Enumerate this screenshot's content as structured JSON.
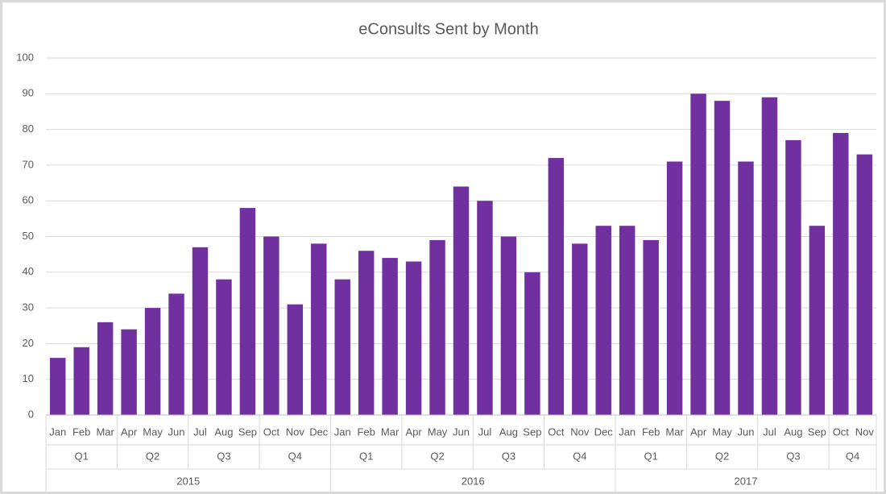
{
  "chart_data": {
    "type": "bar",
    "title": "eConsults Sent by Month",
    "color": "#7030a0",
    "years": [
      {
        "name": "2015",
        "quarters": [
          {
            "name": "Q1",
            "months": [
              "Jan",
              "Feb",
              "Mar"
            ]
          },
          {
            "name": "Q2",
            "months": [
              "Apr",
              "May",
              "Jun"
            ]
          },
          {
            "name": "Q3",
            "months": [
              "Jul",
              "Aug",
              "Sep"
            ]
          },
          {
            "name": "Q4",
            "months": [
              "Oct",
              "Nov",
              "Dec"
            ]
          }
        ]
      },
      {
        "name": "2016",
        "quarters": [
          {
            "name": "Q1",
            "months": [
              "Jan",
              "Feb",
              "Mar"
            ]
          },
          {
            "name": "Q2",
            "months": [
              "Apr",
              "May",
              "Jun"
            ]
          },
          {
            "name": "Q3",
            "months": [
              "Jul",
              "Aug",
              "Sep"
            ]
          },
          {
            "name": "Q4",
            "months": [
              "Oct",
              "Nov",
              "Dec"
            ]
          }
        ]
      },
      {
        "name": "2017",
        "quarters": [
          {
            "name": "Q1",
            "months": [
              "Jan",
              "Feb",
              "Mar"
            ]
          },
          {
            "name": "Q2",
            "months": [
              "Apr",
              "May",
              "Jun"
            ]
          },
          {
            "name": "Q3",
            "months": [
              "Jul",
              "Aug",
              "Sep"
            ]
          },
          {
            "name": "Q4",
            "months": [
              "Oct",
              "Nov"
            ]
          }
        ]
      }
    ],
    "values": [
      16,
      19,
      26,
      24,
      30,
      34,
      47,
      38,
      58,
      50,
      31,
      48,
      38,
      46,
      44,
      43,
      49,
      64,
      60,
      50,
      40,
      72,
      48,
      53,
      53,
      49,
      71,
      90,
      88,
      71,
      89,
      77,
      53,
      79,
      73
    ],
    "ylim": [
      0,
      100
    ],
    "yticks": [
      0,
      10,
      20,
      30,
      40,
      50,
      60,
      70,
      80,
      90,
      100
    ],
    "grid": true
  }
}
